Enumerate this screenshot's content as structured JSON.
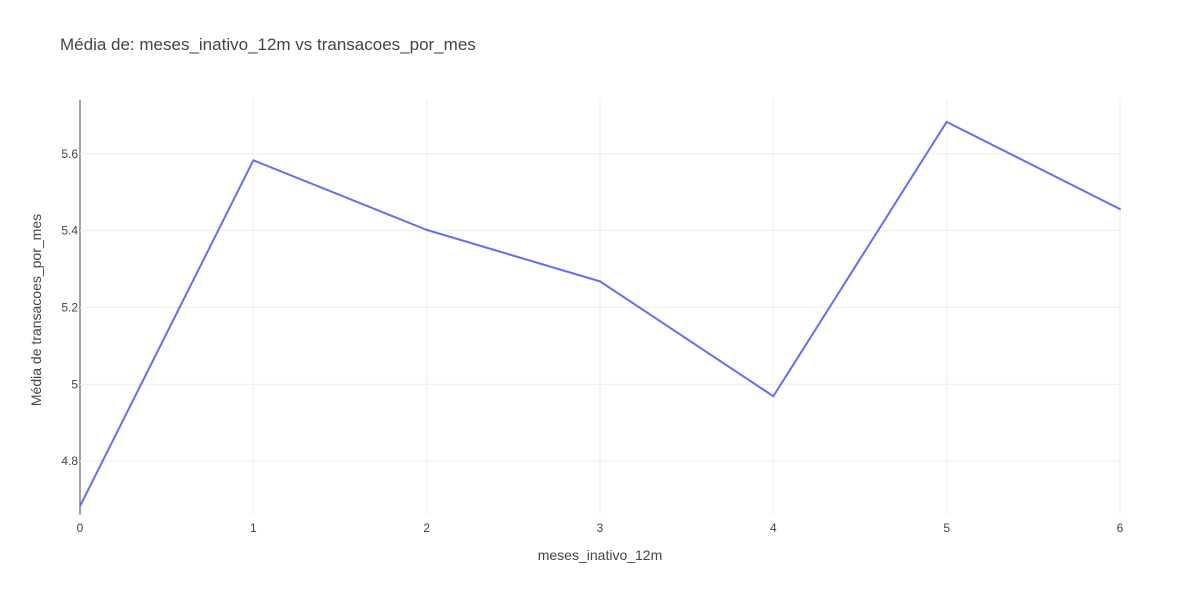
{
  "chart_data": {
    "type": "line",
    "title": "Média de: meses_inativo_12m vs transacoes_por_mes",
    "xlabel": "meses_inativo_12m",
    "ylabel": "Média de transacoes_por_mes",
    "x": [
      0,
      1,
      2,
      3,
      4,
      5,
      6
    ],
    "series": [
      {
        "values": [
          4.683,
          5.583,
          5.402,
          5.268,
          4.969,
          5.683,
          5.456
        ],
        "color": "#636efa"
      }
    ],
    "xlim": [
      0,
      6
    ],
    "ylim": [
      4.66,
      5.74
    ],
    "x_ticks": [
      0,
      1,
      2,
      3,
      4,
      5,
      6
    ],
    "x_tick_labels": [
      "0",
      "1",
      "2",
      "3",
      "4",
      "5",
      "6"
    ],
    "y_ticks": [
      4.8,
      5.0,
      5.2,
      5.4,
      5.6
    ],
    "y_tick_labels": [
      "4.8",
      "5",
      "5.2",
      "5.4",
      "5.6"
    ],
    "grid": true,
    "legend": false
  }
}
